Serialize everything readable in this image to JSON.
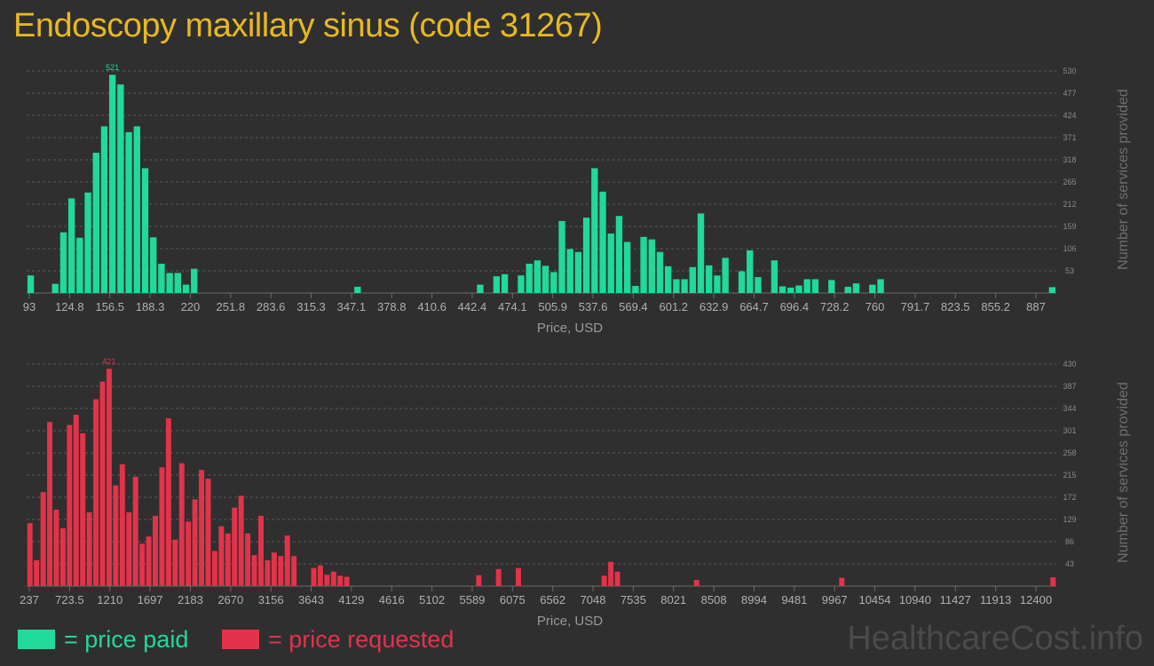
{
  "title": "Endoscopy maxillary sinus (code 31267)",
  "watermark": "HealthcareCost.info",
  "legend": [
    {
      "label": "= price paid",
      "color": "#20d99a"
    },
    {
      "label": "= price requested",
      "color": "#e2334a"
    }
  ],
  "chart_data": [
    {
      "type": "bar",
      "title": "",
      "xlabel": "Price, USD",
      "ylabel": "Number of services provided",
      "color": "#20d99a",
      "x_ticks": [
        "93",
        "124.8",
        "156.5",
        "188.3",
        "220",
        "251.8",
        "283.6",
        "315.3",
        "347.1",
        "378.8",
        "410.6",
        "442.4",
        "474.1",
        "505.9",
        "537.6",
        "569.4",
        "601.2",
        "632.9",
        "664.7",
        "696.4",
        "728.2",
        "760",
        "791.7",
        "823.5",
        "855.2",
        "887"
      ],
      "y_ticks": [
        53,
        106,
        159,
        212,
        265,
        318,
        371,
        424,
        477,
        530
      ],
      "ylim": [
        0,
        530
      ],
      "peak_label": "521",
      "peak_index": 10,
      "values": [
        42,
        0,
        0,
        22,
        145,
        226,
        132,
        240,
        335,
        398,
        521,
        498,
        384,
        398,
        298,
        133,
        70,
        48,
        48,
        20,
        58,
        0,
        0,
        0,
        0,
        0,
        0,
        0,
        0,
        0,
        0,
        0,
        0,
        0,
        0,
        0,
        0,
        0,
        0,
        0,
        15,
        0,
        0,
        0,
        0,
        0,
        0,
        0,
        0,
        0,
        0,
        0,
        0,
        0,
        0,
        20,
        0,
        40,
        45,
        0,
        42,
        70,
        78,
        65,
        50,
        172,
        105,
        98,
        180,
        298,
        242,
        142,
        184,
        122,
        17,
        134,
        128,
        98,
        64,
        33,
        33,
        62,
        190,
        66,
        42,
        84,
        0,
        52,
        102,
        38,
        0,
        78,
        16,
        13,
        18,
        33,
        33,
        0,
        31,
        0,
        15,
        23,
        0,
        20,
        33,
        0,
        0,
        0,
        0,
        0,
        0,
        0,
        0,
        0,
        0,
        0,
        0,
        0,
        0,
        0,
        0,
        0,
        0,
        0,
        0,
        14
      ]
    },
    {
      "type": "bar",
      "title": "",
      "xlabel": "Price, USD",
      "ylabel": "Number of services provided",
      "color": "#e2334a",
      "x_ticks": [
        "237",
        "723.5",
        "1210",
        "1697",
        "2183",
        "2670",
        "3156",
        "3643",
        "4129",
        "4616",
        "5102",
        "5589",
        "6075",
        "6562",
        "7048",
        "7535",
        "8021",
        "8508",
        "8994",
        "9481",
        "9967",
        "10454",
        "10940",
        "11427",
        "11913",
        "12400"
      ],
      "y_ticks": [
        43,
        86,
        129,
        172,
        215,
        258,
        301,
        344,
        387,
        430
      ],
      "ylim": [
        0,
        430
      ],
      "peak_label": "421",
      "peak_index": 12,
      "values": [
        122,
        50,
        182,
        318,
        148,
        112,
        312,
        332,
        296,
        143,
        362,
        396,
        421,
        195,
        236,
        143,
        212,
        82,
        96,
        136,
        230,
        325,
        90,
        238,
        125,
        168,
        225,
        208,
        68,
        116,
        102,
        152,
        175,
        102,
        60,
        136,
        50,
        65,
        58,
        98,
        58,
        0,
        0,
        35,
        40,
        22,
        28,
        20,
        18,
        0,
        0,
        0,
        0,
        0,
        0,
        0,
        0,
        0,
        0,
        0,
        0,
        0,
        0,
        0,
        0,
        0,
        0,
        0,
        21,
        0,
        0,
        33,
        0,
        0,
        35,
        0,
        0,
        0,
        0,
        0,
        0,
        0,
        0,
        0,
        0,
        0,
        0,
        20,
        47,
        28,
        0,
        0,
        0,
        0,
        0,
        0,
        0,
        0,
        0,
        0,
        0,
        12,
        0,
        0,
        0,
        0,
        0,
        0,
        0,
        0,
        0,
        0,
        0,
        0,
        0,
        0,
        0,
        0,
        0,
        0,
        0,
        0,
        0,
        16,
        0,
        0,
        0,
        0,
        0,
        0,
        0,
        0,
        0,
        0,
        0,
        0,
        0,
        0,
        0,
        0,
        0,
        0,
        0,
        0,
        0,
        0,
        0,
        0,
        0,
        0,
        0,
        0,
        0,
        0,
        0,
        17
      ]
    }
  ]
}
